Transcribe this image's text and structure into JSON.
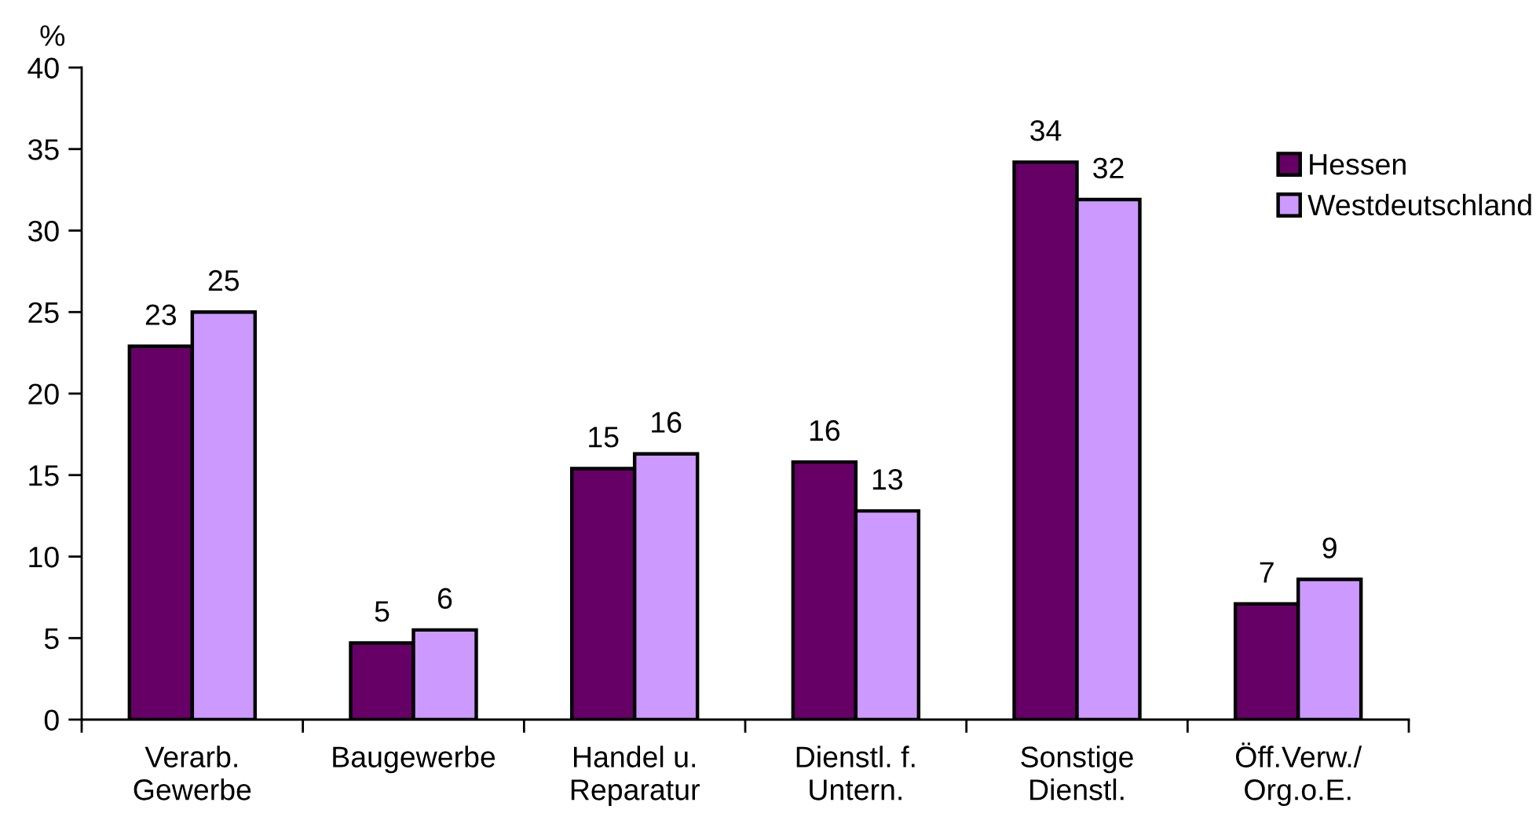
{
  "chart_data": {
    "type": "bar",
    "ylabel": "%",
    "categories": [
      "Verarb.\nGewerbe",
      "Baugewerbe",
      "Handel u.\nReparatur",
      "Dienstl. f.\nUntern.",
      "Sonstige\nDienstl.",
      "Öff.Verw./\nOrg.o.E."
    ],
    "series": [
      {
        "name": "Hessen",
        "color": "#660066",
        "values": [
          22.9,
          4.7,
          15.4,
          15.8,
          34.2,
          7.1
        ],
        "value_labels": [
          "23",
          "5",
          "15",
          "16",
          "34",
          "7"
        ]
      },
      {
        "name": "Westdeutschland",
        "color": "#cc99ff",
        "values": [
          25.0,
          5.5,
          16.3,
          12.8,
          31.9,
          8.6
        ],
        "value_labels": [
          "25",
          "6",
          "16",
          "13",
          "32",
          "9"
        ]
      }
    ],
    "ylim": [
      0,
      40
    ],
    "yticks": [
      0,
      5,
      10,
      15,
      20,
      25,
      30,
      35,
      40
    ],
    "legend": "top right"
  }
}
